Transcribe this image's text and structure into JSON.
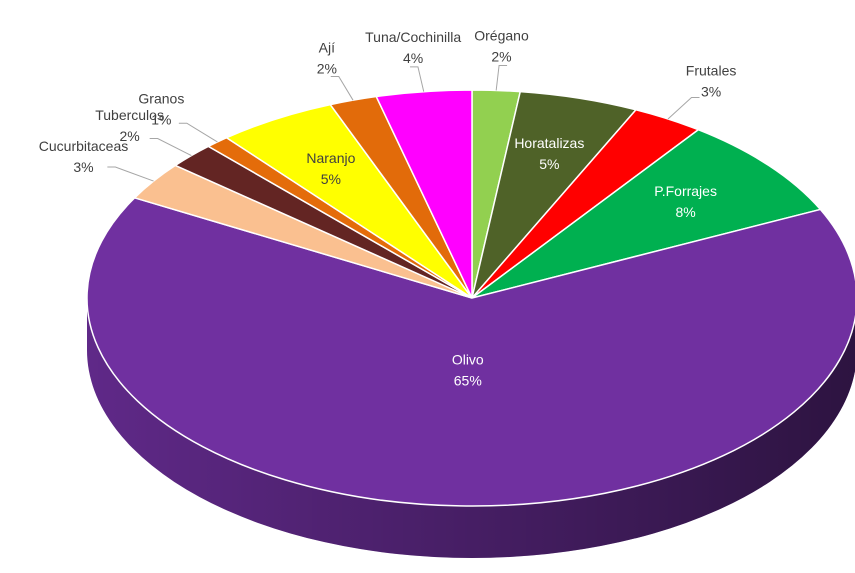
{
  "chart_data": {
    "type": "pie",
    "categories": [
      "Orégano",
      "Horatalizas",
      "Frutales",
      "P.Forrajes",
      "Olivo",
      "Cucurbitaceas",
      "Tuberculos",
      "Granos",
      "Naranjo",
      "Ají",
      "Tuna/Cochinilla"
    ],
    "values": [
      2,
      5,
      3,
      8,
      65,
      3,
      2,
      1,
      5,
      2,
      4
    ],
    "value_labels": [
      "2%",
      "5%",
      "3%",
      "8%",
      "65%",
      "3%",
      "2%",
      "1%",
      "5%",
      "2%",
      "4%"
    ],
    "colors": [
      "#92d050",
      "#4f6228",
      "#ff0000",
      "#00b050",
      "#7030a0",
      "#fac090",
      "#632523",
      "#e46c0a",
      "#ffff00",
      "#e26b0a",
      "#ff00ff"
    ]
  }
}
